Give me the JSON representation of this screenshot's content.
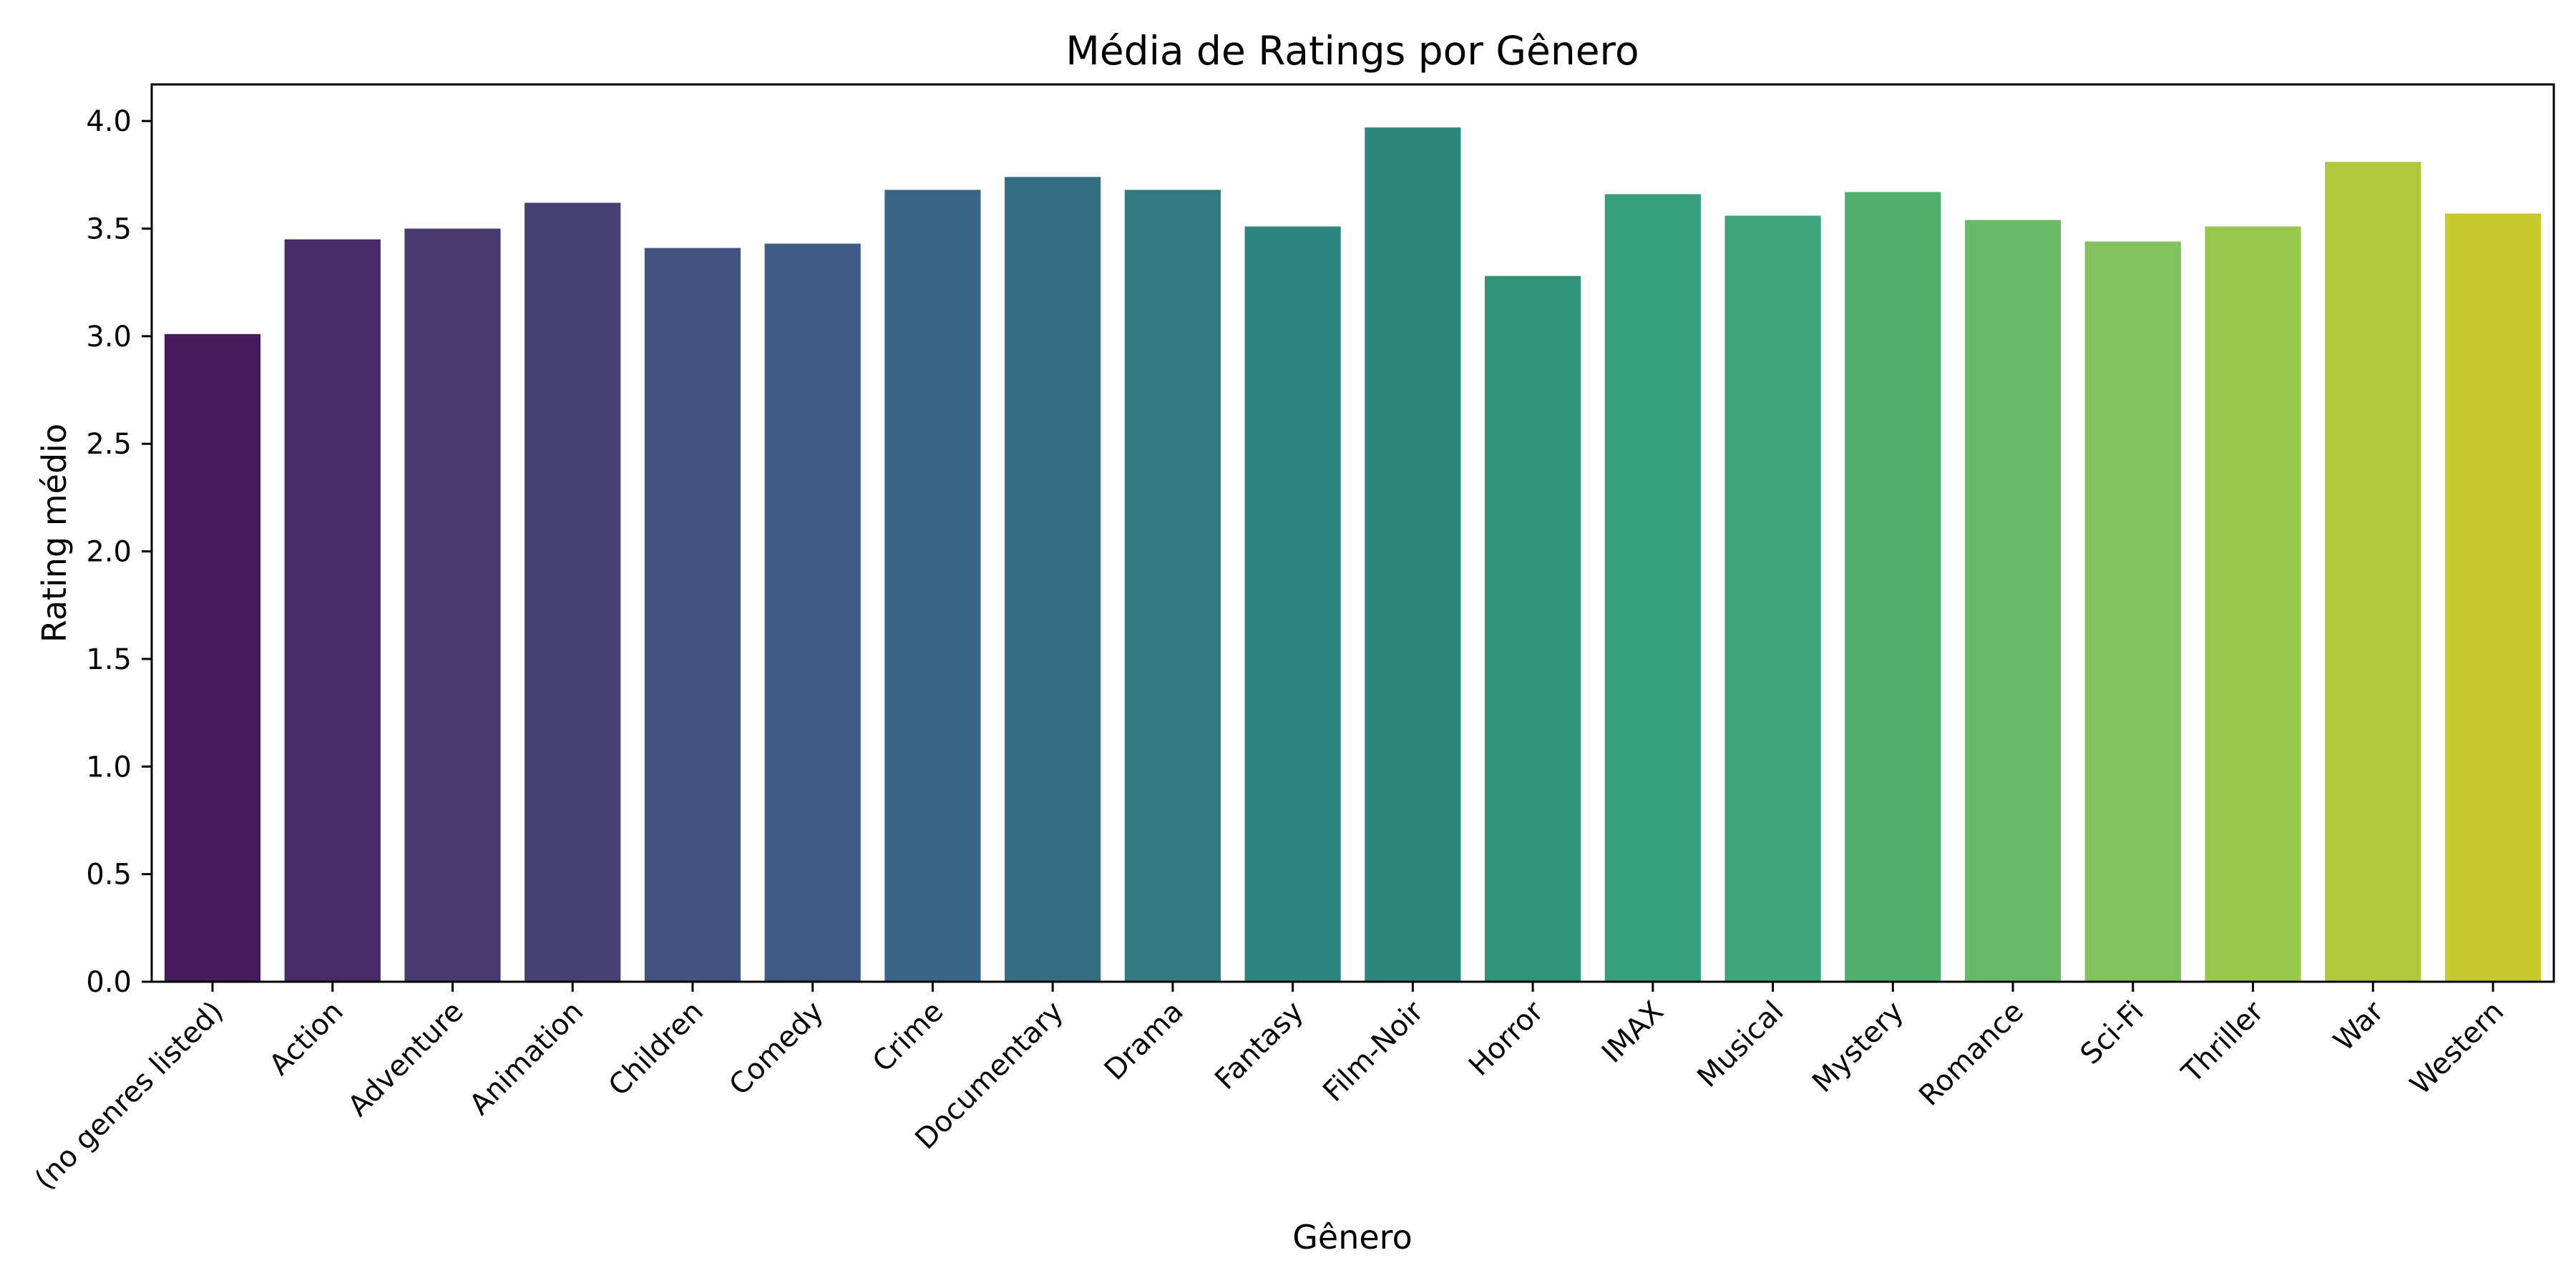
{
  "chart_data": {
    "type": "bar",
    "title": "Média de Ratings por Gênero",
    "xlabel": "Gênero",
    "ylabel": "Rating médio",
    "categories": [
      "(no genres listed)",
      "Action",
      "Adventure",
      "Animation",
      "Children",
      "Comedy",
      "Crime",
      "Documentary",
      "Drama",
      "Fantasy",
      "Film-Noir",
      "Horror",
      "IMAX",
      "Musical",
      "Mystery",
      "Romance",
      "Sci-Fi",
      "Thriller",
      "War",
      "Western"
    ],
    "values": [
      3.01,
      3.45,
      3.5,
      3.62,
      3.41,
      3.43,
      3.68,
      3.74,
      3.68,
      3.51,
      3.97,
      3.28,
      3.66,
      3.56,
      3.67,
      3.54,
      3.44,
      3.51,
      3.81,
      3.57
    ],
    "colors": [
      "#461c5c",
      "#472b67",
      "#483a6f",
      "#463f72",
      "#425382",
      "#3e5b84",
      "#3a6587",
      "#376d81",
      "#327a80",
      "#2e847f",
      "#2c867c",
      "#319478",
      "#38a07c",
      "#3fa47a",
      "#52b06f",
      "#6bba68",
      "#82c15e",
      "#98c84c",
      "#b1c83c",
      "#c7c92f"
    ],
    "ylim": [
      0,
      4.17
    ],
    "yticks": [
      0.0,
      0.5,
      1.0,
      1.5,
      2.0,
      2.5,
      3.0,
      3.5,
      4.0
    ],
    "ytick_labels": [
      "0.0",
      "0.5",
      "1.0",
      "1.5",
      "2.0",
      "2.5",
      "3.0",
      "3.5",
      "4.0"
    ],
    "grid": false,
    "legend": "none"
  }
}
